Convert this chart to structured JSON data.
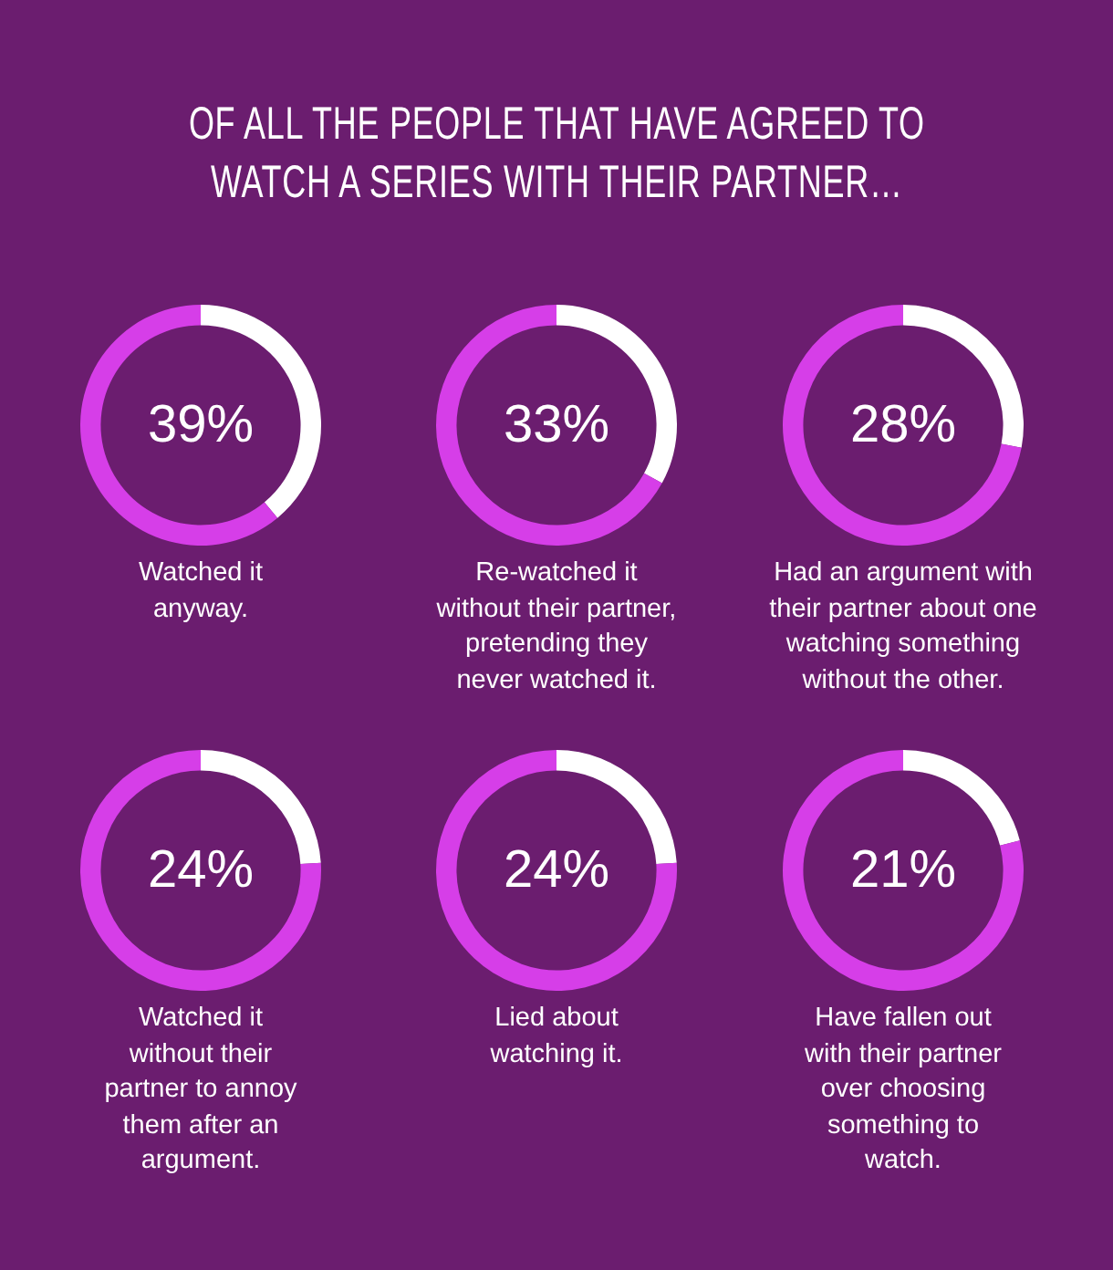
{
  "chart_data": [
    {
      "type": "other",
      "title": "OF ALL THE PEOPLE THAT HAVE AGREED TO\nWATCH A SERIES WITH THEIR PARTNER…"
    },
    {
      "type": "donut",
      "categories": [
        null,
        null
      ],
      "values": [
        39,
        61
      ],
      "colors": [
        "#ffffff",
        "#d63ee8"
      ],
      "annotations": [
        "39%"
      ],
      "xlabel": "Watched it\nanyway."
    },
    {
      "type": "donut",
      "categories": [
        null,
        null
      ],
      "values": [
        33,
        67
      ],
      "colors": [
        "#ffffff",
        "#d63ee8"
      ],
      "annotations": [
        "33%"
      ],
      "xlabel": "Re-watched it\nwithout their partner,\npretending they\nnever watched it."
    },
    {
      "type": "donut",
      "categories": [
        null,
        null
      ],
      "values": [
        28,
        72
      ],
      "colors": [
        "#ffffff",
        "#d63ee8"
      ],
      "annotations": [
        "28%"
      ],
      "xlabel": "Had an argument with\ntheir partner about one\nwatching something\nwithout the other."
    },
    {
      "type": "donut",
      "categories": [
        null,
        null
      ],
      "values": [
        24,
        76
      ],
      "colors": [
        "#ffffff",
        "#d63ee8"
      ],
      "annotations": [
        "24%"
      ],
      "xlabel": "Watched it\nwithout their\npartner to annoy\nthem after an\nargument."
    },
    {
      "type": "donut",
      "categories": [
        null,
        null
      ],
      "values": [
        24,
        76
      ],
      "colors": [
        "#ffffff",
        "#d63ee8"
      ],
      "annotations": [
        "24%"
      ],
      "xlabel": "Lied about\nwatching it."
    },
    {
      "type": "donut",
      "categories": [
        null,
        null
      ],
      "values": [
        21,
        79
      ],
      "colors": [
        "#ffffff",
        "#d63ee8"
      ],
      "annotations": [
        "21%"
      ],
      "xlabel": "Have fallen out\nwith their partner\nover choosing\nsomething to\nwatch."
    }
  ]
}
